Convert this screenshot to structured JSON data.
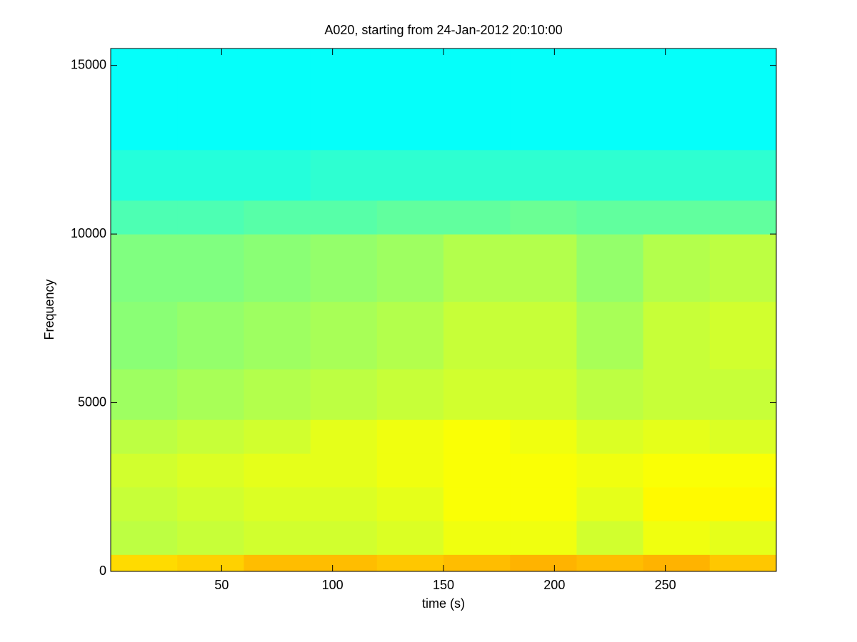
{
  "chart_data": {
    "type": "heatmap",
    "title": "A020, starting from 24-Jan-2012 20:10:00",
    "x_label": "time (s)",
    "y_label": "Frequency",
    "colormap": "jet",
    "x_edges": [
      0,
      30,
      60,
      90,
      120,
      150,
      180,
      210,
      240,
      270,
      300
    ],
    "y_edges": [
      0,
      500,
      1500,
      2500,
      3500,
      4500,
      6000,
      8000,
      10000,
      11000,
      12500,
      15500
    ],
    "values": [
      [
        0.66,
        0.67,
        0.69,
        0.69,
        0.68,
        0.69,
        0.7,
        0.69,
        0.7,
        0.68
      ],
      [
        0.56,
        0.57,
        0.58,
        0.58,
        0.59,
        0.61,
        0.61,
        0.58,
        0.61,
        0.6
      ],
      [
        0.57,
        0.58,
        0.59,
        0.59,
        0.6,
        0.62,
        0.62,
        0.6,
        0.63,
        0.63
      ],
      [
        0.58,
        0.59,
        0.6,
        0.6,
        0.61,
        0.62,
        0.62,
        0.61,
        0.62,
        0.62
      ],
      [
        0.56,
        0.57,
        0.58,
        0.6,
        0.61,
        0.62,
        0.61,
        0.59,
        0.6,
        0.59
      ],
      [
        0.53,
        0.54,
        0.55,
        0.56,
        0.57,
        0.58,
        0.58,
        0.56,
        0.57,
        0.57
      ],
      [
        0.51,
        0.52,
        0.53,
        0.54,
        0.55,
        0.57,
        0.57,
        0.54,
        0.57,
        0.58
      ],
      [
        0.5,
        0.5,
        0.51,
        0.52,
        0.53,
        0.55,
        0.55,
        0.52,
        0.55,
        0.56
      ],
      [
        0.45,
        0.45,
        0.46,
        0.46,
        0.47,
        0.47,
        0.48,
        0.47,
        0.47,
        0.47
      ],
      [
        0.41,
        0.41,
        0.41,
        0.42,
        0.42,
        0.42,
        0.42,
        0.42,
        0.42,
        0.42
      ],
      [
        0.38,
        0.38,
        0.38,
        0.38,
        0.38,
        0.38,
        0.38,
        0.38,
        0.38,
        0.38
      ]
    ],
    "xlim": [
      0,
      300
    ],
    "ylim": [
      0,
      15500
    ],
    "xticks": [
      50,
      100,
      150,
      200,
      250
    ],
    "yticks": [
      0,
      5000,
      10000,
      15000
    ]
  }
}
